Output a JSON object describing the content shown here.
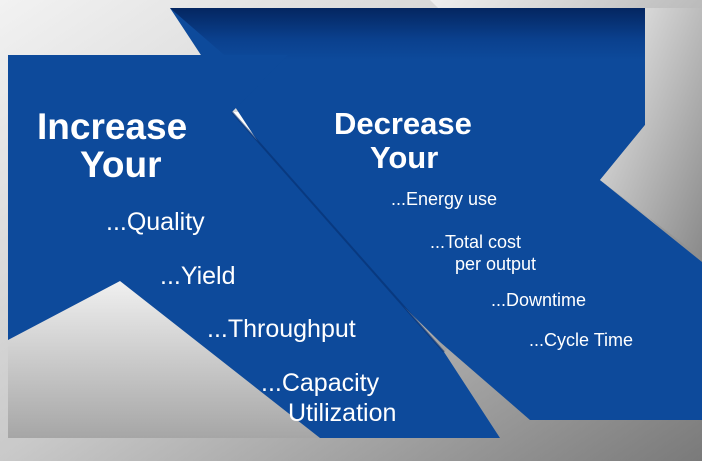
{
  "colors": {
    "arrow_blue": "#0d4a9b",
    "arrow_blue_dark": "#062f6e",
    "gray_light": "#e6e6e6",
    "gray_dark": "#7d7d7d",
    "text": "#ffffff"
  },
  "increase": {
    "heading_line1": "Increase",
    "heading_line2": "Your",
    "items": [
      "...Quality",
      "...Yield",
      "...Throughput",
      "...Capacity",
      "Utilization"
    ]
  },
  "decrease": {
    "heading_line1": "Decrease",
    "heading_line2": "Your",
    "items": [
      "...Energy use",
      "...Total cost",
      "per output",
      "...Downtime",
      "...Cycle Time"
    ]
  }
}
